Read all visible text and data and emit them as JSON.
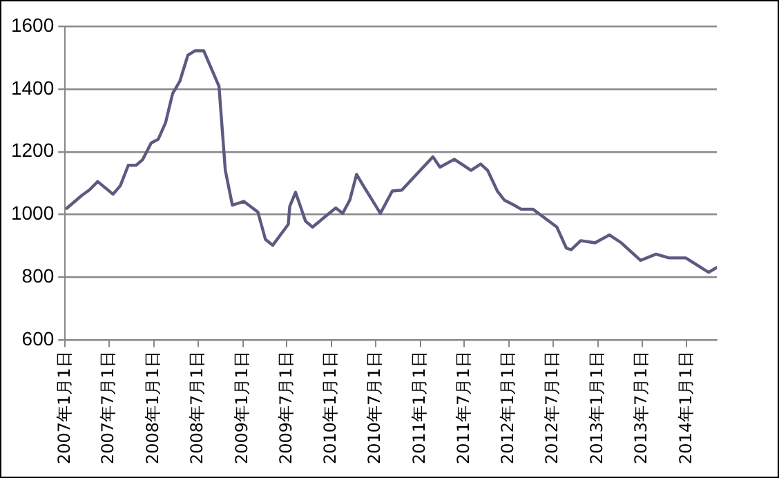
{
  "chart_data": {
    "type": "line",
    "color": "#5b5b82",
    "grid": "y",
    "legend": false,
    "marker": "none",
    "line_style": "solid",
    "x": [
      "2007-01-08",
      "2007-03-12",
      "2007-04-10",
      "2007-05-15",
      "2007-07-17",
      "2007-08-16",
      "2007-09-18",
      "2007-10-20",
      "2007-11-16",
      "2007-12-21",
      "2008-01-19",
      "2008-02-18",
      "2008-03-18",
      "2008-04-17",
      "2008-05-20",
      "2008-06-19",
      "2008-07-24",
      "2008-09-25",
      "2008-10-21",
      "2008-11-19",
      "2009-01-05",
      "2009-03-04",
      "2009-04-04",
      "2009-05-04",
      "2009-07-07",
      "2009-07-13",
      "2009-08-06",
      "2009-09-16",
      "2009-10-15",
      "2009-12-19",
      "2010-01-18",
      "2010-02-16",
      "2010-03-17",
      "2010-04-14",
      "2010-05-10",
      "2010-07-21",
      "2010-09-08",
      "2010-10-17",
      "2011-02-22",
      "2011-03-23",
      "2011-05-21",
      "2011-07-29",
      "2011-09-06",
      "2011-10-05",
      "2011-11-14",
      "2011-12-13",
      "2012-01-22",
      "2012-02-20",
      "2012-04-09",
      "2012-07-16",
      "2012-08-24",
      "2012-09-13",
      "2012-10-22",
      "2012-12-20",
      "2013-02-17",
      "2013-04-07",
      "2013-06-25",
      "2013-08-28",
      "2013-10-20",
      "2013-12-28",
      "2014-04-01",
      "2014-05-04"
    ],
    "values": [
      1020,
      1062,
      1078,
      1105,
      1065,
      1092,
      1157,
      1157,
      1175,
      1228,
      1240,
      1292,
      1385,
      1425,
      1508,
      1522,
      1522,
      1409,
      1141,
      1030,
      1042,
      1008,
      921,
      902,
      969,
      1026,
      1071,
      979,
      960,
      1002,
      1021,
      1004,
      1046,
      1128,
      1094,
      1004,
      1075,
      1078,
      1184,
      1151,
      1176,
      1141,
      1161,
      1141,
      1075,
      1046,
      1030,
      1017,
      1017,
      960,
      893,
      888,
      917,
      910,
      935,
      910,
      854,
      874,
      862,
      862,
      816,
      831
    ],
    "xlim": [
      "2007-01-01",
      "2014-05-05"
    ],
    "xticks": [
      {
        "value": "2007-01-01",
        "label": "2007年1月1日"
      },
      {
        "value": "2007-07-01",
        "label": "2007年7月1日"
      },
      {
        "value": "2008-01-01",
        "label": "2008年1月1日"
      },
      {
        "value": "2008-07-01",
        "label": "2008年7月1日"
      },
      {
        "value": "2009-01-01",
        "label": "2009年1月1日"
      },
      {
        "value": "2009-07-01",
        "label": "2009年7月1日"
      },
      {
        "value": "2010-01-01",
        "label": "2010年1月1日"
      },
      {
        "value": "2010-07-01",
        "label": "2010年7月1日"
      },
      {
        "value": "2011-01-01",
        "label": "2011年1月1日"
      },
      {
        "value": "2011-07-01",
        "label": "2011年7月1日"
      },
      {
        "value": "2012-01-01",
        "label": "2012年1月1日"
      },
      {
        "value": "2012-07-01",
        "label": "2012年7月1日"
      },
      {
        "value": "2013-01-01",
        "label": "2013年1月1日"
      },
      {
        "value": "2013-07-01",
        "label": "2013年7月1日"
      },
      {
        "value": "2014-01-01",
        "label": "2014年1月1日"
      }
    ],
    "ylim": [
      600,
      1600
    ],
    "yticks": [
      600,
      800,
      1000,
      1200,
      1400,
      1600
    ]
  }
}
